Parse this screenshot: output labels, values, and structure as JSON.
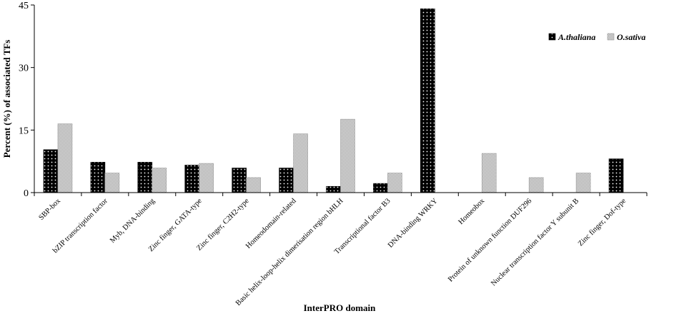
{
  "chart_data": {
    "type": "bar",
    "categories": [
      "SBP-box",
      "bZIP transcription factor",
      "Myb, DNA-binding",
      "Zinc finger, GATA-type",
      "Zinc finger, C2H2-type",
      "Homeodomain-related",
      "Basic helix-loop-helix dimerisation region bHLH",
      "Transcriptional factor B3",
      "DNA-binding WRKY",
      "Homeobox",
      "Protein of unknown function DUF296",
      "Nuclear transcription factor Y subunit B",
      "Zinc finger, Dof-type"
    ],
    "series": [
      {
        "name": "A.thaliana",
        "values": [
          10.3,
          7.3,
          7.3,
          6.6,
          5.9,
          5.9,
          1.5,
          2.2,
          44.1,
          0,
          0,
          0,
          8.1
        ]
      },
      {
        "name": "O.sativa",
        "values": [
          16.5,
          4.7,
          5.9,
          7.0,
          3.6,
          14.1,
          17.6,
          4.7,
          0,
          9.4,
          3.6,
          4.7,
          0
        ]
      }
    ],
    "xlabel": "InterPRO domain",
    "ylabel": "Percent (%) of associated TFs",
    "ylim": [
      0,
      45
    ],
    "yticks": [
      "0",
      "15",
      "30",
      "45"
    ],
    "grid": false,
    "legend_position": "top-right",
    "colors": {
      "A.thaliana": "#000000",
      "O.sativa": "#b0b0b0"
    }
  }
}
